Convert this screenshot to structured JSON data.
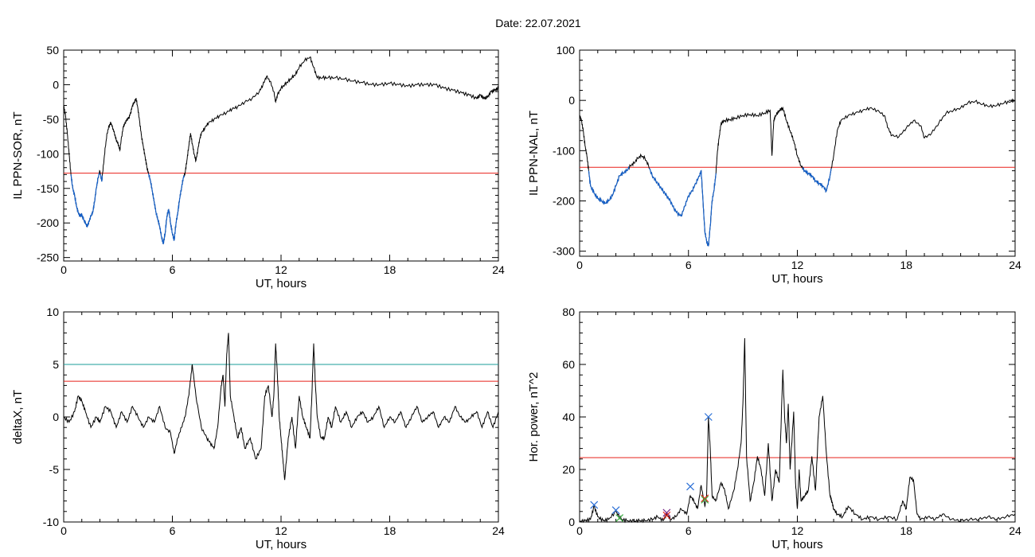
{
  "figure": {
    "title": "Date:  22.07.2021"
  },
  "colors": {
    "trace": "#000000",
    "below": "#1560c8",
    "threshold": "#e8201a",
    "threshold2": "#1a9e9a",
    "blue_marker": "#2a6fd6",
    "red_marker": "#e8201a",
    "green_marker": "#3cb043",
    "purple_marker": "#7a2a8a"
  },
  "chart_data": [
    {
      "type": "line",
      "title": "",
      "xlabel": "UT, hours",
      "ylabel": "IL PPN-SOR, nT",
      "xlim": [
        0,
        24
      ],
      "ylim": [
        -255,
        50
      ],
      "xticks": [
        0,
        6,
        12,
        18,
        24
      ],
      "yticks": [
        50,
        0,
        -50,
        -100,
        -150,
        -200,
        -250
      ],
      "grid": false,
      "threshold": -128,
      "below_threshold_color": "blue",
      "series": [
        {
          "x": [
            0,
            0.1,
            0.2,
            0.3,
            0.4,
            0.5,
            0.6,
            0.7,
            0.8,
            0.9,
            1.0,
            1.1,
            1.2,
            1.3,
            1.4,
            1.5,
            1.6,
            1.7,
            1.8,
            1.9,
            2.0,
            2.1,
            2.2,
            2.3,
            2.4,
            2.5,
            2.6,
            2.7,
            2.8,
            2.9,
            3.0,
            3.1,
            3.2,
            3.3,
            3.4,
            3.5,
            3.6,
            3.7,
            3.8,
            3.9,
            4.0,
            4.1,
            4.2,
            4.3,
            4.4,
            4.5,
            4.6,
            4.7,
            4.8,
            4.9,
            5.0,
            5.1,
            5.2,
            5.3,
            5.4,
            5.5,
            5.6,
            5.7,
            5.8,
            5.9,
            6.0,
            6.1,
            6.2,
            6.3,
            6.4,
            6.5,
            6.6,
            6.7,
            6.8,
            6.9,
            7.0,
            7.1,
            7.2,
            7.3,
            7.4,
            7.5,
            7.6,
            7.8,
            8.0,
            8.3,
            8.6,
            9.0,
            9.3,
            9.6,
            10.0,
            10.4,
            10.8,
            11.0,
            11.2,
            11.4,
            11.6,
            11.7,
            11.8,
            12.0,
            12.2,
            12.4,
            12.6,
            12.8,
            13.0,
            13.3,
            13.6,
            13.8,
            14.0,
            14.3,
            14.6,
            15.0,
            15.5,
            16.0,
            16.5,
            17.0,
            17.5,
            18.0,
            18.5,
            19.0,
            19.5,
            20.0,
            20.5,
            21.0,
            21.5,
            22.0,
            22.4,
            22.8,
            23.0,
            23.2,
            23.4,
            23.6,
            23.8,
            24.0
          ],
          "y": [
            -30,
            -45,
            -70,
            -100,
            -130,
            -150,
            -160,
            -175,
            -185,
            -190,
            -188,
            -195,
            -200,
            -205,
            -198,
            -190,
            -185,
            -170,
            -150,
            -135,
            -125,
            -140,
            -115,
            -90,
            -70,
            -60,
            -55,
            -62,
            -70,
            -80,
            -85,
            -95,
            -75,
            -60,
            -55,
            -50,
            -48,
            -40,
            -30,
            -25,
            -20,
            -35,
            -55,
            -75,
            -90,
            -105,
            -120,
            -130,
            -140,
            -155,
            -170,
            -185,
            -195,
            -205,
            -220,
            -230,
            -215,
            -190,
            -180,
            -200,
            -215,
            -225,
            -200,
            -185,
            -165,
            -150,
            -135,
            -128,
            -110,
            -90,
            -70,
            -85,
            -100,
            -110,
            -95,
            -80,
            -70,
            -62,
            -55,
            -50,
            -45,
            -40,
            -35,
            -32,
            -25,
            -20,
            -10,
            0,
            12,
            5,
            -10,
            -25,
            -15,
            -5,
            0,
            5,
            10,
            15,
            25,
            35,
            40,
            25,
            10,
            10,
            10,
            10,
            8,
            5,
            3,
            0,
            0,
            2,
            0,
            -2,
            0,
            0,
            0,
            -5,
            -8,
            -12,
            -15,
            -20,
            -15,
            -20,
            -18,
            -10,
            -8,
            -5
          ]
        }
      ]
    },
    {
      "type": "line",
      "title": "",
      "xlabel": "UT, hours",
      "ylabel": "IL PPN-NAL, nT",
      "xlim": [
        0,
        24
      ],
      "ylim": [
        -310,
        100
      ],
      "xticks": [
        0,
        6,
        12,
        18,
        24
      ],
      "yticks": [
        100,
        0,
        -100,
        -200,
        -300
      ],
      "grid": false,
      "threshold": -133,
      "below_threshold_color": "blue",
      "series": [
        {
          "x": [
            0,
            0.1,
            0.2,
            0.3,
            0.4,
            0.5,
            0.6,
            0.8,
            1.0,
            1.2,
            1.4,
            1.6,
            1.8,
            2.0,
            2.2,
            2.4,
            2.6,
            2.8,
            3.0,
            3.2,
            3.4,
            3.6,
            3.8,
            4.0,
            4.2,
            4.4,
            4.6,
            4.8,
            5.0,
            5.2,
            5.4,
            5.6,
            5.8,
            6.0,
            6.2,
            6.4,
            6.6,
            6.7,
            6.8,
            6.9,
            7.0,
            7.1,
            7.2,
            7.3,
            7.4,
            7.5,
            7.6,
            7.7,
            7.8,
            8.0,
            8.3,
            8.6,
            9.0,
            9.4,
            9.8,
            10.2,
            10.5,
            10.6,
            10.7,
            10.8,
            11.0,
            11.2,
            11.4,
            11.6,
            11.8,
            12.0,
            12.2,
            12.4,
            12.6,
            12.8,
            13.0,
            13.2,
            13.4,
            13.6,
            13.8,
            14.0,
            14.2,
            14.4,
            14.8,
            15.2,
            15.6,
            16.0,
            16.4,
            16.8,
            17.0,
            17.2,
            17.6,
            18.0,
            18.4,
            18.8,
            19.0,
            19.4,
            19.8,
            20.2,
            20.6,
            21.0,
            21.4,
            21.8,
            22.2,
            22.6,
            23.0,
            23.4,
            23.8,
            24.0
          ],
          "y": [
            -30,
            -40,
            -60,
            -90,
            -110,
            -140,
            -170,
            -185,
            -195,
            -200,
            -205,
            -200,
            -190,
            -170,
            -150,
            -145,
            -140,
            -130,
            -125,
            -115,
            -110,
            -115,
            -130,
            -150,
            -160,
            -170,
            -180,
            -190,
            -200,
            -215,
            -225,
            -230,
            -210,
            -190,
            -180,
            -165,
            -150,
            -140,
            -200,
            -260,
            -280,
            -290,
            -250,
            -200,
            -180,
            -150,
            -100,
            -70,
            -45,
            -40,
            -38,
            -35,
            -30,
            -28,
            -30,
            -25,
            -20,
            -110,
            -40,
            -30,
            -20,
            -15,
            -40,
            -60,
            -80,
            -110,
            -130,
            -140,
            -145,
            -150,
            -160,
            -165,
            -170,
            -180,
            -150,
            -110,
            -60,
            -40,
            -30,
            -25,
            -20,
            -15,
            -20,
            -30,
            -55,
            -70,
            -72,
            -55,
            -40,
            -50,
            -75,
            -65,
            -45,
            -25,
            -20,
            -15,
            -5,
            -2,
            -8,
            -12,
            -10,
            -5,
            -2,
            0
          ]
        }
      ]
    },
    {
      "type": "line",
      "title": "",
      "xlabel": "UT, hours",
      "ylabel": "deltaX, nT",
      "xlim": [
        0,
        24
      ],
      "ylim": [
        -10,
        10
      ],
      "xticks": [
        0,
        6,
        12,
        18,
        24
      ],
      "yticks": [
        10,
        5,
        0,
        -5,
        -10
      ],
      "grid": false,
      "thresholds": [
        5,
        3.4
      ],
      "series": [
        {
          "x": [
            0,
            0.3,
            0.6,
            0.8,
            1.0,
            1.2,
            1.5,
            1.8,
            2.0,
            2.3,
            2.6,
            2.9,
            3.2,
            3.5,
            3.8,
            4.1,
            4.4,
            4.7,
            5.0,
            5.3,
            5.6,
            5.9,
            6.1,
            6.3,
            6.5,
            6.7,
            6.9,
            7.0,
            7.1,
            7.3,
            7.6,
            7.9,
            8.1,
            8.3,
            8.5,
            8.7,
            8.8,
            8.9,
            9.0,
            9.1,
            9.2,
            9.4,
            9.6,
            9.8,
            10.0,
            10.3,
            10.6,
            10.9,
            11.1,
            11.3,
            11.5,
            11.6,
            11.7,
            11.8,
            11.9,
            12.0,
            12.1,
            12.2,
            12.4,
            12.6,
            12.8,
            13.0,
            13.2,
            13.4,
            13.6,
            13.7,
            13.8,
            13.9,
            14.0,
            14.2,
            14.4,
            14.6,
            14.8,
            15.0,
            15.3,
            15.6,
            15.9,
            16.2,
            16.5,
            16.8,
            17.1,
            17.4,
            17.7,
            18.0,
            18.3,
            18.6,
            18.9,
            19.2,
            19.5,
            19.8,
            20.1,
            20.4,
            20.7,
            21.0,
            21.3,
            21.6,
            21.9,
            22.2,
            22.5,
            22.8,
            23.1,
            23.4,
            23.7,
            24.0
          ],
          "y": [
            0,
            -0.5,
            0.5,
            2,
            1.5,
            0.5,
            -1,
            0,
            -0.5,
            1,
            0.5,
            -1,
            0.5,
            -0.5,
            1,
            0,
            -1,
            0,
            -0.5,
            1,
            -1,
            -1.5,
            -3.5,
            -2,
            -1,
            0,
            2,
            3.5,
            5,
            2,
            -1,
            -2,
            -2.5,
            -3,
            -1,
            3,
            4,
            1,
            6,
            8,
            2,
            0,
            -2,
            -1,
            -3,
            -2,
            -4,
            -3,
            2,
            3,
            0,
            2,
            7,
            4,
            0,
            -2,
            -4,
            -6,
            -2,
            0,
            -3,
            2,
            0,
            -1,
            -2,
            2,
            7,
            3,
            0,
            -2,
            -2,
            0,
            -1,
            1,
            -0.5,
            0.5,
            -1,
            0,
            0.5,
            -0.5,
            0,
            1,
            -1,
            0,
            -0.5,
            0.5,
            -1,
            0,
            1,
            -0.5,
            0,
            0.5,
            -1,
            0,
            -0.5,
            1,
            0,
            -0.5,
            0,
            0.5,
            -1,
            0.5,
            -1,
            0.5
          ]
        }
      ]
    },
    {
      "type": "line",
      "title": "",
      "xlabel": "UT, hours",
      "ylabel": "Hor. power, nT^2",
      "xlim": [
        0,
        24
      ],
      "ylim": [
        0,
        80
      ],
      "xticks": [
        0,
        6,
        12,
        18,
        24
      ],
      "yticks": [
        80,
        60,
        40,
        20,
        0
      ],
      "grid": false,
      "threshold": 24.5,
      "markers": [
        {
          "x": 0.8,
          "y": 6.5,
          "color": "blue"
        },
        {
          "x": 2.0,
          "y": 4.5,
          "color": "blue"
        },
        {
          "x": 2.2,
          "y": 1.5,
          "color": "green"
        },
        {
          "x": 4.8,
          "y": 3.5,
          "color": "purple"
        },
        {
          "x": 4.8,
          "y": 2.5,
          "color": "red"
        },
        {
          "x": 6.1,
          "y": 13.5,
          "color": "blue"
        },
        {
          "x": 6.9,
          "y": 9.0,
          "color": "red"
        },
        {
          "x": 6.9,
          "y": 8.5,
          "color": "green"
        },
        {
          "x": 7.1,
          "y": 40.0,
          "color": "blue"
        }
      ],
      "series": [
        {
          "x": [
            0,
            0.3,
            0.6,
            0.8,
            1.0,
            1.3,
            1.6,
            2.0,
            2.3,
            2.6,
            3.0,
            3.3,
            3.6,
            4.0,
            4.3,
            4.6,
            4.8,
            5.0,
            5.3,
            5.6,
            5.9,
            6.1,
            6.3,
            6.5,
            6.7,
            6.9,
            7.0,
            7.1,
            7.2,
            7.3,
            7.5,
            7.8,
            8.0,
            8.2,
            8.5,
            8.7,
            8.9,
            9.0,
            9.1,
            9.2,
            9.4,
            9.6,
            9.8,
            10.0,
            10.2,
            10.4,
            10.6,
            10.8,
            11.0,
            11.2,
            11.3,
            11.4,
            11.5,
            11.6,
            11.8,
            11.9,
            12.0,
            12.1,
            12.2,
            12.4,
            12.6,
            12.8,
            13.0,
            13.2,
            13.4,
            13.6,
            13.8,
            13.9,
            14.0,
            14.2,
            14.5,
            14.8,
            15.2,
            15.6,
            16.0,
            16.5,
            17.0,
            17.5,
            17.8,
            18.0,
            18.2,
            18.4,
            18.6,
            18.8,
            19.2,
            19.6,
            20.0,
            20.5,
            21.0,
            21.5,
            22.0,
            22.5,
            23.0,
            23.5,
            24.0
          ],
          "y": [
            0,
            0.5,
            1,
            6,
            2,
            0.5,
            1,
            4,
            1,
            0.5,
            0.3,
            0.5,
            0.5,
            1,
            2,
            0.5,
            3,
            1,
            2,
            5,
            3,
            10,
            8,
            5,
            14,
            6,
            10,
            40,
            28,
            10,
            8,
            15,
            12,
            5,
            12,
            20,
            30,
            45,
            70,
            25,
            8,
            15,
            25,
            20,
            10,
            30,
            8,
            20,
            15,
            58,
            40,
            30,
            45,
            20,
            42,
            15,
            5,
            20,
            8,
            10,
            12,
            25,
            12,
            40,
            48,
            26,
            10,
            8,
            5,
            3,
            2,
            6,
            3,
            1,
            2,
            1,
            2,
            1,
            8,
            5,
            17,
            16,
            3,
            1,
            2,
            1,
            3,
            1,
            0.5,
            1,
            1,
            2,
            1,
            2,
            3
          ]
        }
      ]
    }
  ]
}
